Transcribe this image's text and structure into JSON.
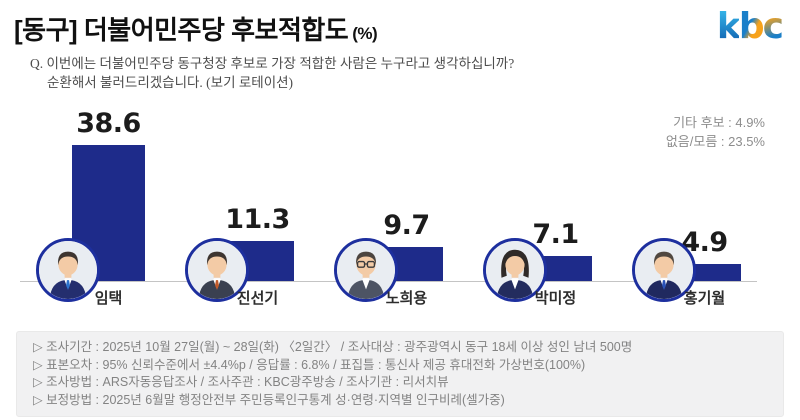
{
  "header": {
    "title": "[동구] 더불어민주당 후보적합도",
    "title_unit": "(%)",
    "logo_letters": [
      "k",
      "b",
      "c"
    ],
    "question_line1": "Q. 이번에는 더불어민주당 동구청장 후보로 가장 적합한 사람은 누구라고 생각하십니까?",
    "question_line2": "순환해서 불러드리겠습니다. (보기 로테이션)"
  },
  "side_note": {
    "line1": "기타 후보 : 4.9%",
    "line2": "없음/모름 : 23.5%"
  },
  "chart_data": {
    "type": "bar",
    "title": "[동구] 더불어민주당 후보적합도 (%)",
    "categories": [
      "임택",
      "진선기",
      "노희용",
      "박미정",
      "홍기월"
    ],
    "values": [
      38.6,
      11.3,
      9.7,
      7.1,
      4.9
    ],
    "unit": "%",
    "ylim": [
      0,
      40
    ],
    "grid": false,
    "legend": false,
    "value_labels": true,
    "bar_color": "#1e2b8a",
    "axis_color": "#c4c4c4",
    "photo_ring_color": "#1d2f9e",
    "annotations": [
      "기타 후보 : 4.9%",
      "없음/모름 : 23.5%"
    ],
    "photos": [
      "male-dark-hair-blue-tie",
      "male-dark-hair-orange-tie",
      "male-glasses-gray-suit",
      "female-short-hair-navy-suit",
      "male-older-blue-tie"
    ]
  },
  "footnote": {
    "lines": [
      "▷ 조사기간 : 2025년 10월 27일(월) ~ 28일(화) 〈2일간〉 / 조사대상 : 광주광역시 동구 18세 이상 성인 남녀 500명",
      "▷ 표본오차 : 95% 신뢰수준에서 ±4.4%p / 응답률 : 6.8% / 표집틀 : 통신사 제공 휴대전화 가상번호(100%)",
      "▷ 조사방법 : ARS자동응답조사 / 조사주관 : KBC광주방송 / 조사기관 : 리서치뷰",
      "▷ 보정방법 : 2025년 6월말 행정안전부 주민등록인구통계 성·연령·지역별 인구비례(셀가중)"
    ]
  }
}
